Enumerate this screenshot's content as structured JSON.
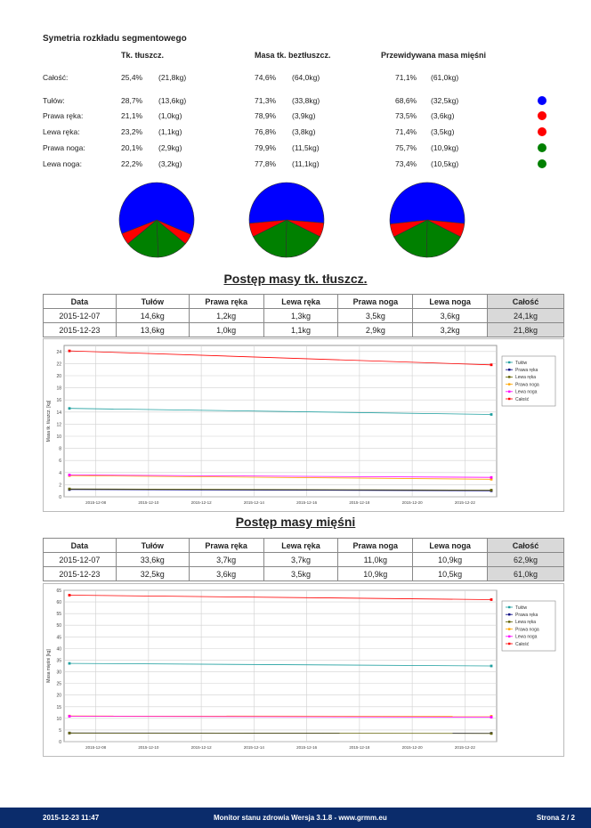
{
  "segment": {
    "title": "Symetria rozkładu segmentowego",
    "headers": [
      "Tk. tłuszcz.",
      "Masa tk. beztłuszcz.",
      "Przewidywana masa mięśni"
    ],
    "rows": [
      {
        "label": "Całość:",
        "fat_pct": "25,4%",
        "fat_kg": "(21,8kg)",
        "lean_pct": "74,6%",
        "lean_kg": "(64,0kg)",
        "muscle_pct": "71,1%",
        "muscle_kg": "(61,0kg)",
        "color": ""
      },
      {
        "label": "Tułów:",
        "fat_pct": "28,7%",
        "fat_kg": "(13,6kg)",
        "lean_pct": "71,3%",
        "lean_kg": "(33,8kg)",
        "muscle_pct": "68,6%",
        "muscle_kg": "(32,5kg)",
        "color": "#0000ff"
      },
      {
        "label": "Prawa ręka:",
        "fat_pct": "21,1%",
        "fat_kg": "(1,0kg)",
        "lean_pct": "78,9%",
        "lean_kg": "(3,9kg)",
        "muscle_pct": "73,5%",
        "muscle_kg": "(3,6kg)",
        "color": "#ff0000"
      },
      {
        "label": "Lewa ręka:",
        "fat_pct": "23,2%",
        "fat_kg": "(1,1kg)",
        "lean_pct": "76,8%",
        "lean_kg": "(3,8kg)",
        "muscle_pct": "71,4%",
        "muscle_kg": "(3,5kg)",
        "color": "#ff0000"
      },
      {
        "label": "Prawa noga:",
        "fat_pct": "20,1%",
        "fat_kg": "(2,9kg)",
        "lean_pct": "79,9%",
        "lean_kg": "(11,5kg)",
        "muscle_pct": "75,7%",
        "muscle_kg": "(10,9kg)",
        "color": "#008000"
      },
      {
        "label": "Lewa noga:",
        "fat_pct": "22,2%",
        "fat_kg": "(3,2kg)",
        "lean_pct": "77,8%",
        "lean_kg": "(11,1kg)",
        "muscle_pct": "73,4%",
        "muscle_kg": "(10,5kg)",
        "color": "#008000"
      }
    ],
    "pie_colors": {
      "trunk": "#0000ff",
      "arms": "#ff0000",
      "legs": "#008000"
    },
    "pies": [
      {
        "trunk": 13.6,
        "right_arm": 1.0,
        "left_arm": 1.1,
        "right_leg": 2.9,
        "left_leg": 3.2
      },
      {
        "trunk": 33.8,
        "right_arm": 3.9,
        "left_arm": 3.8,
        "right_leg": 11.5,
        "left_leg": 11.1
      },
      {
        "trunk": 32.5,
        "right_arm": 3.6,
        "left_arm": 3.5,
        "right_leg": 10.9,
        "left_leg": 10.5
      }
    ]
  },
  "fat_progress": {
    "title": "Postęp masy tk. tłuszcz.",
    "columns": [
      "Data",
      "Tułów",
      "Prawa ręka",
      "Lewa ręka",
      "Prawa noga",
      "Lewa noga",
      "Całość"
    ],
    "rows": [
      [
        "2015-12-07",
        "14,6kg",
        "1,2kg",
        "1,3kg",
        "3,5kg",
        "3,6kg",
        "24,1kg"
      ],
      [
        "2015-12-23",
        "13,6kg",
        "1,0kg",
        "1,1kg",
        "2,9kg",
        "3,2kg",
        "21,8kg"
      ]
    ]
  },
  "muscle_progress": {
    "title": "Postęp masy mięśni",
    "columns": [
      "Data",
      "Tułów",
      "Prawa ręka",
      "Lewa ręka",
      "Prawa noga",
      "Lewa noga",
      "Całość"
    ],
    "rows": [
      [
        "2015-12-07",
        "33,6kg",
        "3,7kg",
        "3,7kg",
        "11,0kg",
        "10,9kg",
        "62,9kg"
      ],
      [
        "2015-12-23",
        "32,5kg",
        "3,6kg",
        "3,5kg",
        "10,9kg",
        "10,5kg",
        "61,0kg"
      ]
    ]
  },
  "chart_data": [
    {
      "type": "line",
      "ylabel": "Masa tk. tłuszcz. [kg]",
      "x": [
        "2015-12-07",
        "2015-12-23"
      ],
      "x_ticks": [
        "2015-12-08",
        "2015-12-10",
        "2015-12-12",
        "2015-12-14",
        "2015-12-16",
        "2015-12-18",
        "2015-12-20",
        "2015-12-22"
      ],
      "ylim": [
        0,
        25
      ],
      "y_ticks": [
        0,
        2,
        4,
        6,
        8,
        10,
        12,
        14,
        16,
        18,
        20,
        22,
        24
      ],
      "grid": true,
      "legend": "right",
      "series": [
        {
          "name": "Tułów",
          "color": "#20a0a0",
          "values": [
            14.6,
            13.6
          ]
        },
        {
          "name": "Prawa ręka",
          "color": "#000080",
          "values": [
            1.2,
            1.0
          ]
        },
        {
          "name": "Lewa ręka",
          "color": "#606000",
          "values": [
            1.3,
            1.1
          ]
        },
        {
          "name": "Prawa noga",
          "color": "#ffa500",
          "values": [
            3.5,
            2.9
          ]
        },
        {
          "name": "Lewa noga",
          "color": "#ff00ff",
          "values": [
            3.6,
            3.2
          ]
        },
        {
          "name": "Całość",
          "color": "#ff0000",
          "values": [
            24.1,
            21.8
          ]
        }
      ]
    },
    {
      "type": "line",
      "ylabel": "Masa mięśni [kg]",
      "x": [
        "2015-12-07",
        "2015-12-23"
      ],
      "x_ticks": [
        "2015-12-08",
        "2015-12-10",
        "2015-12-12",
        "2015-12-14",
        "2015-12-16",
        "2015-12-18",
        "2015-12-20",
        "2015-12-22"
      ],
      "ylim": [
        0,
        65
      ],
      "y_ticks": [
        0,
        5,
        10,
        15,
        20,
        25,
        30,
        35,
        40,
        45,
        50,
        55,
        60,
        65
      ],
      "grid": true,
      "legend": "right",
      "series": [
        {
          "name": "Tułów",
          "color": "#20a0a0",
          "values": [
            33.6,
            32.5
          ]
        },
        {
          "name": "Prawa ręka",
          "color": "#000080",
          "values": [
            3.7,
            3.6
          ]
        },
        {
          "name": "Lewa ręka",
          "color": "#606000",
          "values": [
            3.7,
            3.5
          ]
        },
        {
          "name": "Prawa noga",
          "color": "#ffa500",
          "values": [
            11.0,
            10.9
          ]
        },
        {
          "name": "Lewa noga",
          "color": "#ff00ff",
          "values": [
            10.9,
            10.5
          ]
        },
        {
          "name": "Całość",
          "color": "#ff0000",
          "values": [
            62.9,
            61.0
          ]
        }
      ]
    }
  ],
  "footer": {
    "timestamp": "2015-12-23 11:47",
    "app": "Monitor stanu zdrowia Wersja 3.1.8 - www.grmm.eu",
    "page": "Strona 2 / 2"
  }
}
